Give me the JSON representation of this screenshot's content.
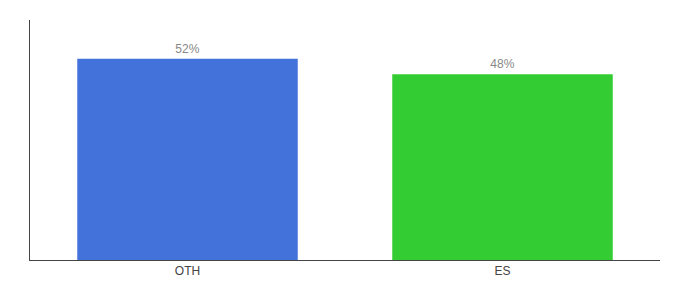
{
  "chart_data": {
    "type": "bar",
    "categories": [
      "OTH",
      "ES"
    ],
    "values": [
      52,
      48
    ],
    "value_labels": [
      "52%",
      "48%"
    ],
    "colors": [
      "#4472db",
      "#33cc33"
    ],
    "data_labels": true,
    "ylim": [
      0,
      62
    ],
    "yticks": [],
    "tick_labels": "x",
    "grid": false
  }
}
